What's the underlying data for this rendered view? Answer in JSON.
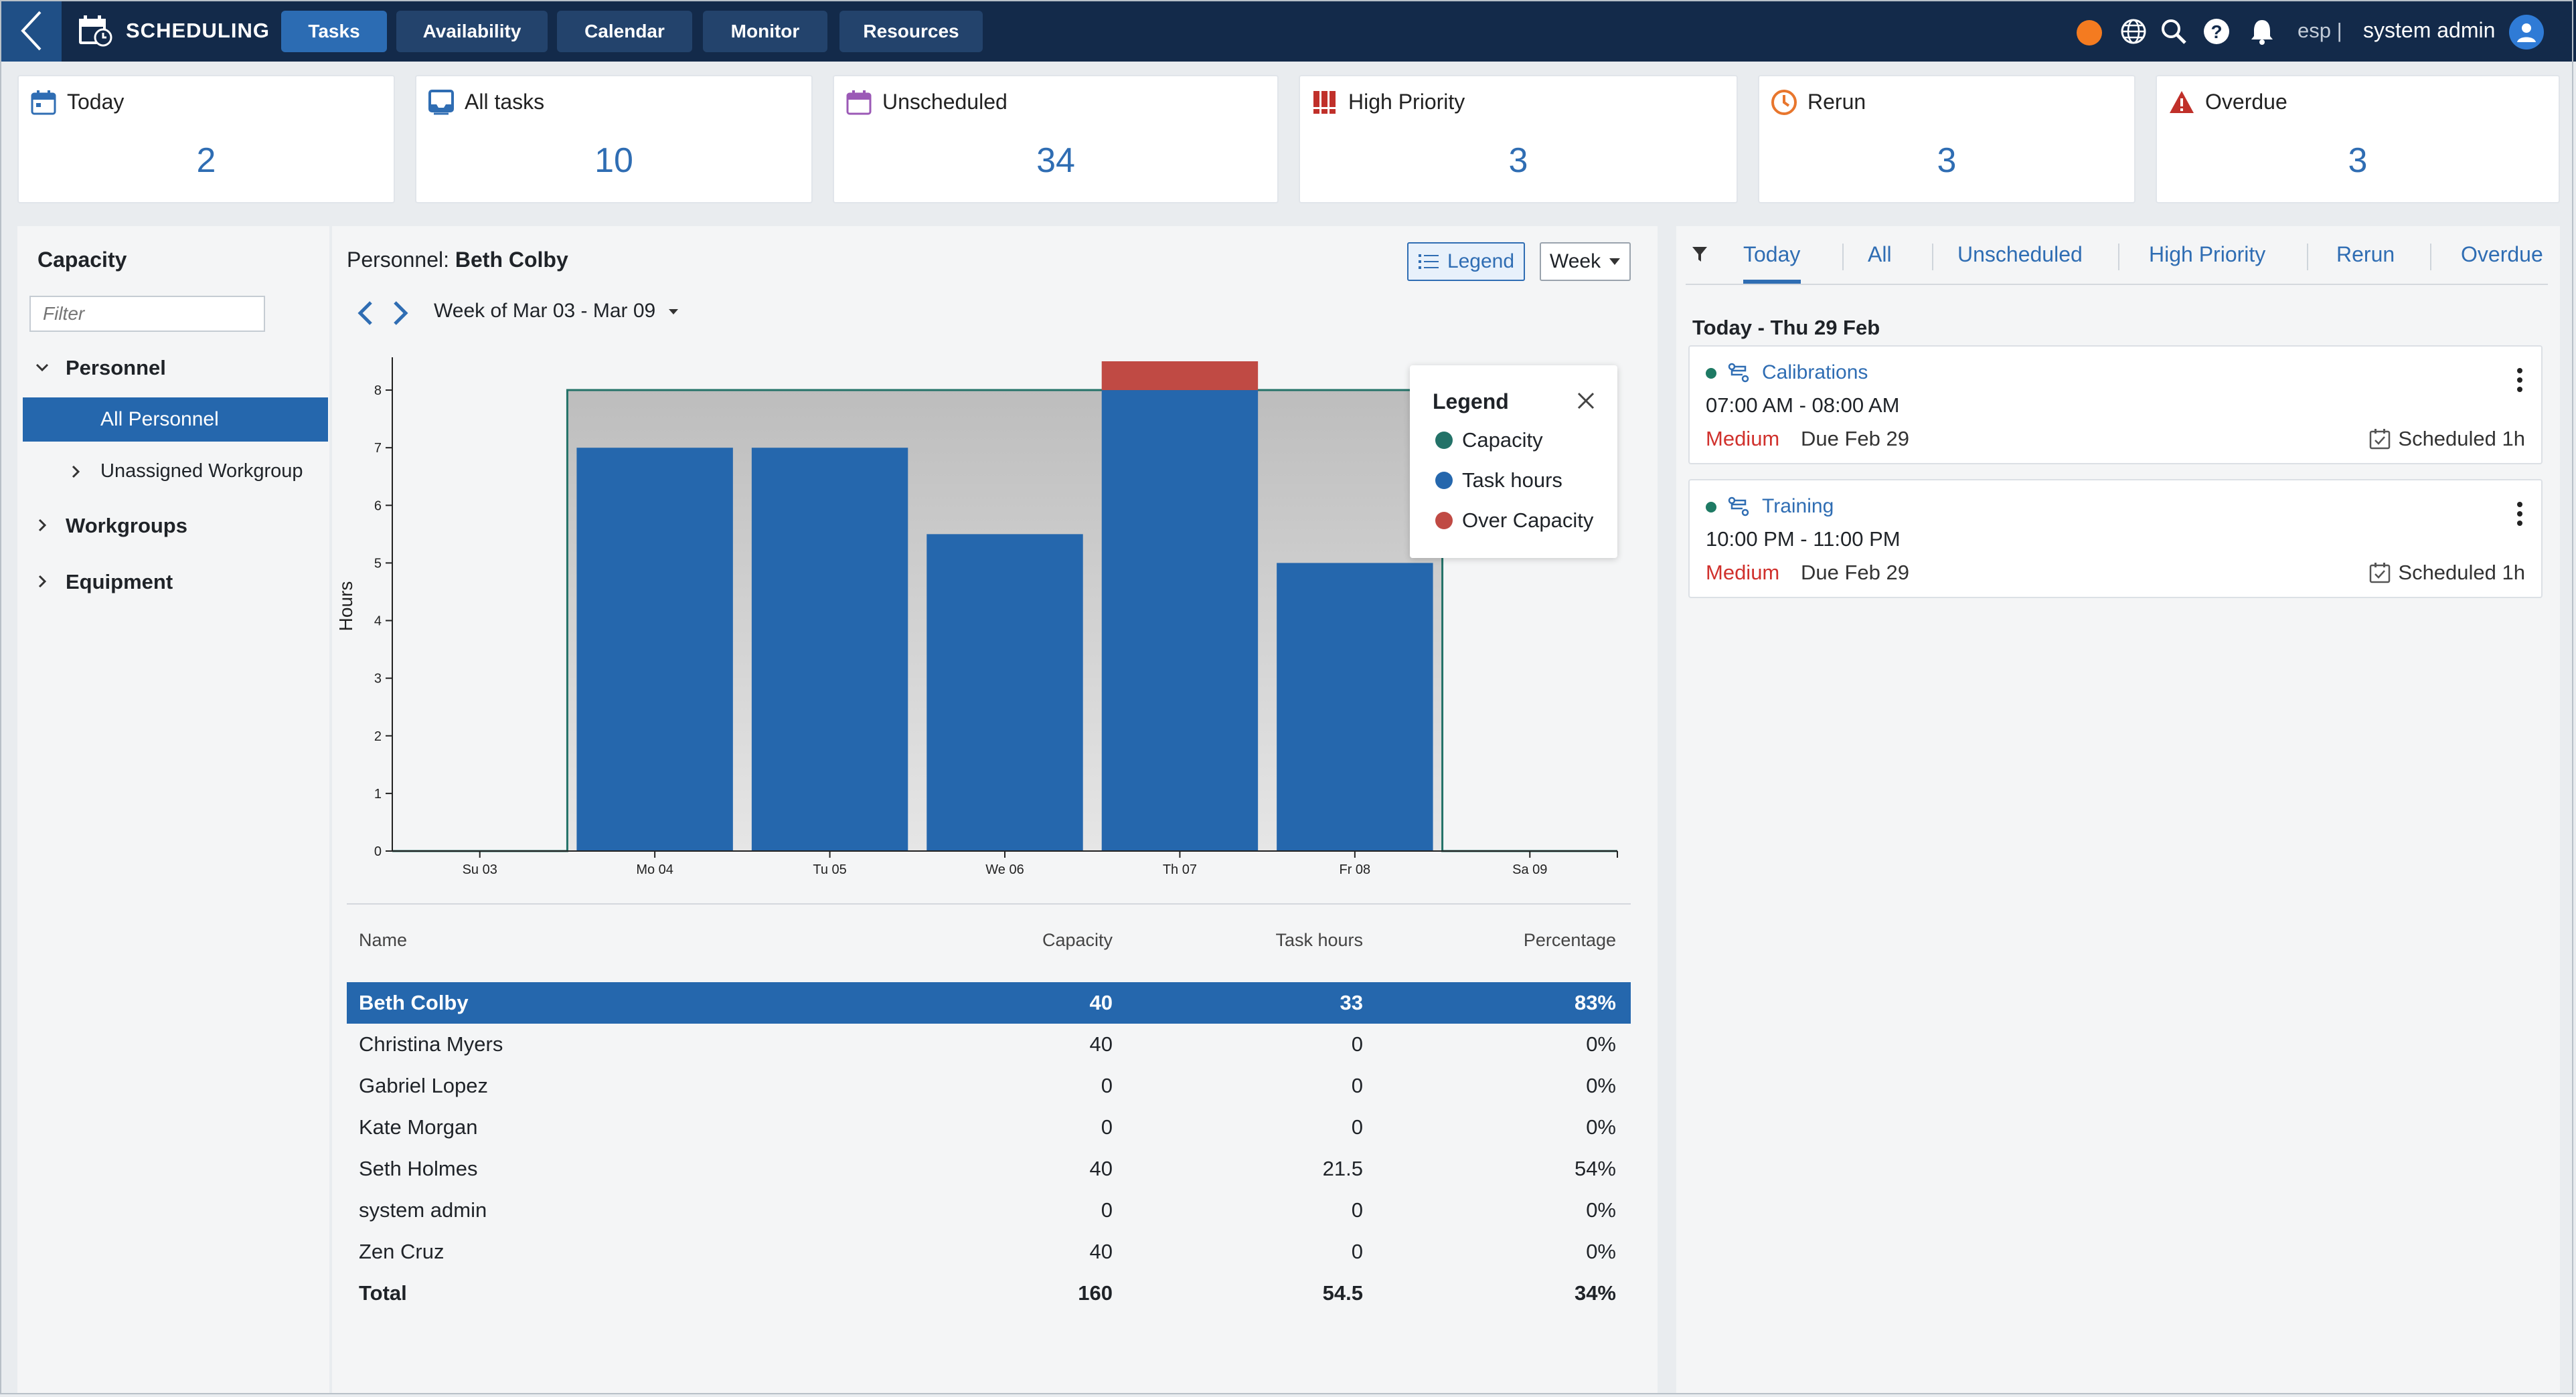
{
  "app": {
    "title": "SCHEDULING"
  },
  "nav": [
    {
      "label": "Tasks"
    },
    {
      "label": "Availability"
    },
    {
      "label": "Calendar"
    },
    {
      "label": "Monitor"
    },
    {
      "label": "Resources"
    }
  ],
  "topbar": {
    "lang": "esp |",
    "user": "system admin",
    "status_color": "#f47b20"
  },
  "kpis": [
    {
      "label": "Today",
      "value": "2"
    },
    {
      "label": "All tasks",
      "value": "10"
    },
    {
      "label": "Unscheduled",
      "value": "34"
    },
    {
      "label": "High Priority",
      "value": "3"
    },
    {
      "label": "Rerun",
      "value": "3"
    },
    {
      "label": "Overdue",
      "value": "3"
    }
  ],
  "capacity": {
    "title": "Capacity",
    "filter_placeholder": "Filter",
    "tree": {
      "personnel": "Personnel",
      "all_personnel": "All Personnel",
      "unassigned": "Unassigned Workgroup",
      "workgroups": "Workgroups",
      "equipment": "Equipment"
    }
  },
  "personnel": {
    "prefix": "Personnel: ",
    "name": "Beth Colby",
    "legend_btn": "Legend",
    "range_btn": "Week",
    "week_label": "Week of Mar 03 - Mar 09"
  },
  "legend": {
    "title": "Legend",
    "items": [
      {
        "label": "Capacity",
        "color": "#237268"
      },
      {
        "label": "Task hours",
        "color": "#2567ad"
      },
      {
        "label": "Over Capacity",
        "color": "#c04a44"
      }
    ]
  },
  "chart_data": {
    "type": "bar",
    "ylabel": "Hours",
    "ylim": [
      0,
      8.5
    ],
    "yticks": [
      0,
      1,
      2,
      3,
      4,
      5,
      6,
      7,
      8
    ],
    "categories": [
      "Su 03",
      "Mo 04",
      "Tu 05",
      "We 06",
      "Th 07",
      "Fr 08",
      "Sa 09"
    ],
    "series": [
      {
        "name": "Capacity",
        "values": [
          0,
          8,
          8,
          8,
          8,
          8,
          0
        ]
      },
      {
        "name": "Task hours",
        "values": [
          0,
          7,
          7,
          5.5,
          8,
          5,
          0
        ]
      },
      {
        "name": "Over Capacity",
        "values": [
          0,
          0,
          0,
          0,
          0.5,
          0,
          0
        ]
      }
    ]
  },
  "table": {
    "headers": [
      "Name",
      "Capacity",
      "Task hours",
      "Percentage"
    ],
    "rows": [
      {
        "name": "Beth Colby",
        "capacity": "40",
        "hours": "33",
        "pct": "83%"
      },
      {
        "name": "Christina Myers",
        "capacity": "40",
        "hours": "0",
        "pct": "0%"
      },
      {
        "name": "Gabriel Lopez",
        "capacity": "0",
        "hours": "0",
        "pct": "0%"
      },
      {
        "name": "Kate Morgan",
        "capacity": "0",
        "hours": "0",
        "pct": "0%"
      },
      {
        "name": "Seth Holmes",
        "capacity": "40",
        "hours": "21.5",
        "pct": "54%"
      },
      {
        "name": "system admin",
        "capacity": "0",
        "hours": "0",
        "pct": "0%"
      },
      {
        "name": "Zen Cruz",
        "capacity": "40",
        "hours": "0",
        "pct": "0%"
      }
    ],
    "total": {
      "name": "Total",
      "capacity": "160",
      "hours": "54.5",
      "pct": "34%"
    }
  },
  "tasks_panel": {
    "tabs": [
      {
        "label": "Today"
      },
      {
        "label": "All"
      },
      {
        "label": "Unscheduled"
      },
      {
        "label": "High Priority"
      },
      {
        "label": "Rerun"
      },
      {
        "label": "Overdue"
      }
    ],
    "day_header": "Today - Thu 29 Feb",
    "tasks": [
      {
        "name": "Calibrations",
        "time": "07:00 AM - 08:00 AM",
        "priority": "Medium",
        "due": "Due Feb 29",
        "scheduled": "Scheduled 1h"
      },
      {
        "name": "Training",
        "time": "10:00 PM - 11:00 PM",
        "priority": "Medium",
        "due": "Due Feb 29",
        "scheduled": "Scheduled 1h"
      }
    ]
  }
}
